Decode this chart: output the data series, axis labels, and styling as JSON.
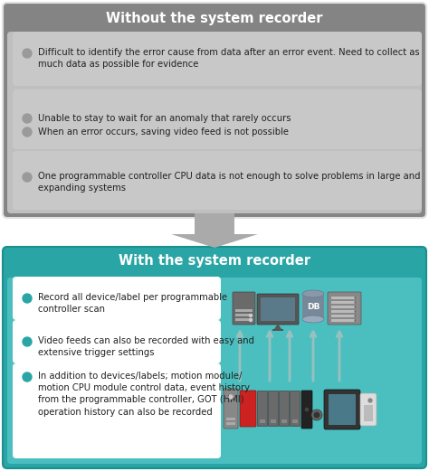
{
  "title_top": "Without the system recorder",
  "title_bottom": "With the system recorder",
  "top_bg": "#848484",
  "top_inner_bg": "#BFBFBF",
  "top_section_bg": "#C8C8C8",
  "bottom_bg": "#2AA5A5",
  "bottom_inner_bg": "#5EC4C4",
  "bottom_section_bg": "#FFFFFF",
  "bullet_color_top": "#9A9A9A",
  "bullet_color_bottom": "#2AA5A5",
  "arrow_color": "#AAAAAA",
  "top_bullets_1": "Difficult to identify the error cause from data after an error event. Need to collect as\nmuch data as possible for evidence",
  "top_bullets_2a": "Unable to stay to wait for an anomaly that rarely occurs",
  "top_bullets_2b": "When an error occurs, saving video feed is not possible",
  "top_bullets_3": "One programmable controller CPU data is not enough to solve problems in large and\nexpanding systems",
  "bottom_bullets_1": "Record all device/label per programmable\ncontroller scan",
  "bottom_bullets_2": "Video feeds can also be recorded with easy and\nextensive trigger settings",
  "bottom_bullets_3": "In addition to devices/labels; motion module/\nmotion CPU module control data, event history\nfrom the programmable controller, GOT (HMI)\noperation history can also be recorded",
  "fig_bg": "#FFFFFF",
  "title_fontsize": 10.5,
  "bullet_fontsize": 7.2,
  "fig_w": 4.74,
  "fig_h": 5.21,
  "dpi": 100
}
